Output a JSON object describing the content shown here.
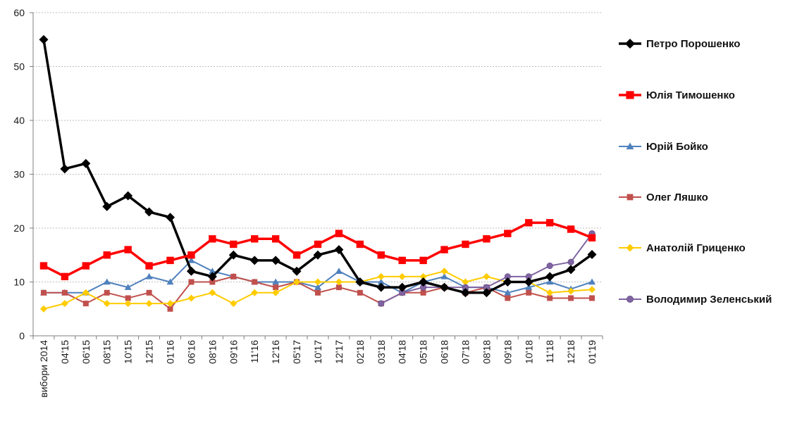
{
  "chart_data": {
    "type": "line",
    "title": "",
    "xlabel": "",
    "ylabel": "",
    "ylim": [
      0,
      60
    ],
    "yticks": [
      0,
      10,
      20,
      30,
      40,
      50,
      60
    ],
    "grid": true,
    "legend_position": "right",
    "categories": [
      "вибори 2014",
      "04'15",
      "06'15",
      "08'15",
      "10'15",
      "12'15",
      "01'16",
      "06'16",
      "08'16",
      "09'16",
      "11'16",
      "12'16",
      "05'17",
      "10'17",
      "12'17",
      "02'18",
      "03'18",
      "04'18",
      "05'18",
      "06'18",
      "07'18",
      "08'18",
      "09'18",
      "10'18",
      "11'18",
      "12'18",
      "01'19"
    ],
    "series": [
      {
        "name": "Петро Порошенко",
        "color": "#000000",
        "marker": "diamond",
        "width": 3.5,
        "values": [
          55,
          31,
          32,
          24,
          26,
          23,
          22,
          12,
          11,
          15,
          14,
          14,
          12,
          15,
          16,
          10,
          9,
          9,
          10,
          9,
          8,
          8,
          10,
          10,
          11,
          12.3,
          15.1
        ]
      },
      {
        "name": "Юлія Тимошенко",
        "color": "#ff0000",
        "marker": "square",
        "width": 3.5,
        "values": [
          13,
          11,
          13,
          15,
          16,
          13,
          14,
          15,
          18,
          17,
          18,
          18,
          15,
          17,
          19,
          17,
          15,
          14,
          14,
          16,
          17,
          18,
          19,
          21,
          21,
          19.8,
          18.2
        ]
      },
      {
        "name": "Юрій Бойко",
        "color": "#4f81bd",
        "marker": "triangle",
        "width": 2,
        "values": [
          8,
          8,
          8,
          10,
          9,
          11,
          10,
          14,
          12,
          11,
          10,
          10,
          10,
          9,
          12,
          10,
          10,
          8,
          10,
          11,
          9,
          9,
          8,
          9,
          10,
          8.7,
          10
        ]
      },
      {
        "name": "Олег Ляшко",
        "color": "#c0504d",
        "marker": "square",
        "width": 2,
        "values": [
          8,
          8,
          6,
          8,
          7,
          8,
          5,
          10,
          10,
          11,
          10,
          9,
          10,
          8,
          9,
          8,
          6,
          8,
          8,
          9,
          8,
          9,
          7,
          8,
          7,
          7,
          7
        ]
      },
      {
        "name": "Анатолій Гриценко",
        "color": "#ffcc00",
        "marker": "diamond",
        "width": 2,
        "values": [
          5,
          6,
          8,
          6,
          6,
          6,
          6,
          7,
          8,
          6,
          8,
          8,
          10,
          10,
          10,
          10,
          11,
          11,
          11,
          12,
          10,
          11,
          10,
          10,
          8,
          8.3,
          8.6
        ]
      },
      {
        "name": "Володимир Зеленський",
        "color": "#8064a2",
        "marker": "circle",
        "width": 2,
        "values": [
          null,
          null,
          null,
          null,
          null,
          null,
          null,
          null,
          null,
          null,
          null,
          null,
          null,
          null,
          null,
          null,
          6,
          8,
          9,
          9,
          9,
          9,
          11,
          11,
          13,
          13.7,
          19
        ]
      }
    ]
  }
}
